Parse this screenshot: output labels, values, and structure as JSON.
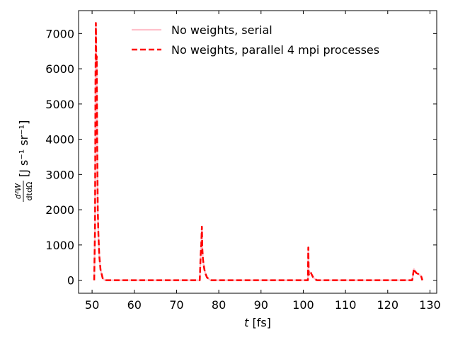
{
  "chart_data": {
    "type": "line",
    "xlabel_var": "t",
    "xlabel_unit": " [fs]",
    "ylabel_frac_num": "d²W",
    "ylabel_frac_den": "dtdΩ",
    "ylabel_unit": "[J s⁻¹ sr⁻¹]",
    "xlim": [
      46.8,
      131.6
    ],
    "ylim": [
      -370,
      7650
    ],
    "xticks": [
      50,
      60,
      70,
      80,
      90,
      100,
      110,
      120,
      130
    ],
    "yticks": [
      0,
      1000,
      2000,
      3000,
      4000,
      5000,
      6000,
      7000
    ],
    "grid": false,
    "legend_position": "top-center",
    "series": [
      {
        "name": "No weights, serial",
        "color": "#ffc0cb",
        "style": "solid",
        "x": [
          50.5,
          50.7,
          50.8,
          50.9,
          51.0,
          51.1,
          51.2,
          51.35,
          51.5,
          51.7,
          52.0,
          52.5,
          53.0,
          75.5,
          75.7,
          75.85,
          76.0,
          76.1,
          76.25,
          76.4,
          76.6,
          76.8,
          77.2,
          77.8,
          78.2,
          101.1,
          101.2,
          101.3,
          101.5,
          101.8,
          102.0,
          102.3,
          102.7,
          103.2,
          125.8,
          126.2,
          126.5,
          126.8,
          127.2,
          127.6,
          127.9,
          128.2
        ],
        "y": [
          0,
          1500,
          5500,
          7300,
          6200,
          6350,
          4000,
          2000,
          1300,
          700,
          300,
          60,
          0,
          0,
          700,
          1000,
          1520,
          900,
          600,
          450,
          300,
          200,
          80,
          20,
          0,
          0,
          930,
          150,
          230,
          210,
          160,
          90,
          40,
          0,
          0,
          320,
          250,
          200,
          180,
          150,
          120,
          0
        ]
      },
      {
        "name": "No weights, parallel 4 mpi processes",
        "color": "#ff0000",
        "style": "dashed",
        "x": [
          50.5,
          50.7,
          50.8,
          50.9,
          51.0,
          51.1,
          51.2,
          51.35,
          51.5,
          51.7,
          52.0,
          52.5,
          53.0,
          75.5,
          75.7,
          75.85,
          76.0,
          76.1,
          76.25,
          76.4,
          76.6,
          76.8,
          77.2,
          77.8,
          78.2,
          101.1,
          101.2,
          101.3,
          101.5,
          101.8,
          102.0,
          102.3,
          102.7,
          103.2,
          125.8,
          126.2,
          126.5,
          126.8,
          127.2,
          127.6,
          127.9,
          128.2
        ],
        "y": [
          0,
          1500,
          5500,
          7300,
          6200,
          6350,
          4000,
          2000,
          1300,
          700,
          300,
          60,
          0,
          0,
          700,
          1000,
          1520,
          900,
          600,
          450,
          300,
          200,
          80,
          20,
          0,
          0,
          930,
          150,
          230,
          210,
          160,
          90,
          40,
          0,
          0,
          320,
          250,
          200,
          180,
          150,
          120,
          0
        ]
      }
    ]
  }
}
